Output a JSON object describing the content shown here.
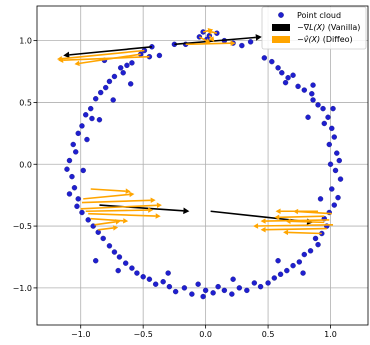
{
  "chart_data": {
    "type": "scatter",
    "title": "",
    "xlabel": "",
    "ylabel": "",
    "xlim": [
      -1.35,
      1.3
    ],
    "ylim": [
      -1.3,
      1.28
    ],
    "x_ticks": [
      -1.0,
      -0.5,
      0.0,
      0.5,
      1.0
    ],
    "y_ticks": [
      -1.0,
      -0.5,
      0.0,
      0.5,
      1.0
    ],
    "x_tick_labels": [
      "−1.0",
      "−0.5",
      "0.0",
      "0.5",
      "1.0"
    ],
    "y_tick_labels": [
      "−1.0",
      "−0.5",
      "0.0",
      "0.5",
      "1.0"
    ],
    "grid": true,
    "legend_position": "top-right",
    "legend": [
      {
        "label": "Point cloud",
        "marker": "dot",
        "color": "#1f1fcf"
      },
      {
        "label_prefix": "−∇",
        "label_math": "L(X)",
        "label_suffix": " (Vanilla)",
        "marker": "arrow",
        "color": "#000000"
      },
      {
        "label_prefix": "−",
        "label_math": "v̂(X)",
        "label_suffix": " (Diffeo)",
        "marker": "arrow",
        "color": "#ffa500"
      }
    ],
    "colors": {
      "points": "#1f1fcf",
      "points_edge": "#1a1a8c",
      "vanilla": "#000000",
      "diffeo": "#ffa500",
      "grid": "#b0b0b0"
    },
    "points": [
      [
        -0.02,
        1.07
      ],
      [
        0.03,
        1.04
      ],
      [
        -0.05,
        1.03
      ],
      [
        0.09,
        1.06
      ],
      [
        0.01,
        1.01
      ],
      [
        -0.16,
        0.97
      ],
      [
        -0.25,
        0.97
      ],
      [
        0.22,
        0.98
      ],
      [
        0.29,
        0.96
      ],
      [
        0.36,
        0.99
      ],
      [
        -0.43,
        0.95
      ],
      [
        -0.49,
        0.92
      ],
      [
        -0.52,
        0.89
      ],
      [
        -0.45,
        0.87
      ],
      [
        0.47,
        0.86
      ],
      [
        0.53,
        0.83
      ],
      [
        -0.59,
        0.82
      ],
      [
        -0.63,
        0.8
      ],
      [
        -0.68,
        0.78
      ],
      [
        -0.66,
        0.74
      ],
      [
        0.58,
        0.78
      ],
      [
        0.61,
        0.74
      ],
      [
        0.66,
        0.7
      ],
      [
        0.7,
        0.72
      ],
      [
        -0.73,
        0.71
      ],
      [
        -0.77,
        0.67
      ],
      [
        -0.8,
        0.62
      ],
      [
        0.74,
        0.63
      ],
      [
        0.79,
        0.6
      ],
      [
        0.85,
        0.57
      ],
      [
        -0.84,
        0.58
      ],
      [
        -0.88,
        0.53
      ],
      [
        0.86,
        0.52
      ],
      [
        0.9,
        0.48
      ],
      [
        0.94,
        0.45
      ],
      [
        -0.92,
        0.45
      ],
      [
        -0.96,
        0.4
      ],
      [
        -0.91,
        0.37
      ],
      [
        0.98,
        0.38
      ],
      [
        0.95,
        0.33
      ],
      [
        1.01,
        0.29
      ],
      [
        -0.99,
        0.31
      ],
      [
        -1.02,
        0.25
      ],
      [
        1.03,
        0.22
      ],
      [
        0.99,
        0.16
      ],
      [
        -1.06,
        0.16
      ],
      [
        -1.04,
        0.1
      ],
      [
        1.05,
        0.09
      ],
      [
        1.07,
        0.03
      ],
      [
        -1.09,
        0.03
      ],
      [
        -1.11,
        -0.04
      ],
      [
        -1.07,
        -0.1
      ],
      [
        1.04,
        -0.05
      ],
      [
        1.08,
        -0.12
      ],
      [
        -1.05,
        -0.19
      ],
      [
        -1.09,
        -0.24
      ],
      [
        -1.02,
        -0.28
      ],
      [
        1.01,
        -0.2
      ],
      [
        1.06,
        -0.27
      ],
      [
        -1.03,
        -0.34
      ],
      [
        -0.99,
        -0.39
      ],
      [
        -0.94,
        -0.45
      ],
      [
        1.03,
        -0.33
      ],
      [
        0.99,
        -0.39
      ],
      [
        0.95,
        -0.44
      ],
      [
        -0.9,
        -0.5
      ],
      [
        -0.86,
        -0.55
      ],
      [
        0.97,
        -0.5
      ],
      [
        0.93,
        -0.56
      ],
      [
        0.88,
        -0.6
      ],
      [
        -0.82,
        -0.6
      ],
      [
        -0.77,
        -0.66
      ],
      [
        0.9,
        -0.65
      ],
      [
        0.84,
        -0.7
      ],
      [
        0.79,
        -0.73
      ],
      [
        -0.73,
        -0.71
      ],
      [
        -0.69,
        -0.75
      ],
      [
        -0.64,
        -0.8
      ],
      [
        0.75,
        -0.79
      ],
      [
        0.7,
        -0.82
      ],
      [
        0.65,
        -0.86
      ],
      [
        -0.59,
        -0.84
      ],
      [
        -0.55,
        -0.88
      ],
      [
        -0.5,
        -0.91
      ],
      [
        0.6,
        -0.89
      ],
      [
        0.55,
        -0.92
      ],
      [
        0.5,
        -0.96
      ],
      [
        -0.45,
        -0.93
      ],
      [
        -0.4,
        -0.97
      ],
      [
        -0.34,
        -0.95
      ],
      [
        0.44,
        -0.99
      ],
      [
        0.39,
        -0.96
      ],
      [
        0.33,
        -1.02
      ],
      [
        -0.29,
        -0.99
      ],
      [
        -0.24,
        -1.03
      ],
      [
        -0.17,
        -1.0
      ],
      [
        0.27,
        -1.0
      ],
      [
        0.21,
        -1.05
      ],
      [
        0.15,
        -1.02
      ],
      [
        -0.11,
        -1.05
      ],
      [
        -0.06,
        -0.97
      ],
      [
        0.0,
        -1.02
      ],
      [
        0.06,
        -1.04
      ],
      [
        0.1,
        -0.99
      ],
      [
        -0.02,
        -1.07
      ],
      [
        -0.37,
        0.88
      ],
      [
        0.64,
        0.66
      ],
      [
        -0.74,
        0.52
      ],
      [
        -0.85,
        0.36
      ],
      [
        1.02,
        0.45
      ],
      [
        -0.98,
        -0.05
      ],
      [
        1.0,
        0.0
      ],
      [
        -0.7,
        -0.86
      ],
      [
        0.78,
        -0.88
      ],
      [
        0.82,
        0.38
      ],
      [
        -0.6,
        0.65
      ],
      [
        0.15,
        1.0
      ],
      [
        -0.95,
        0.2
      ],
      [
        0.92,
        -0.28
      ],
      [
        -0.88,
        -0.78
      ],
      [
        0.58,
        -0.78
      ],
      [
        -0.3,
        -0.88
      ],
      [
        0.22,
        -0.93
      ],
      [
        -0.81,
        0.84
      ],
      [
        0.86,
        0.64
      ]
    ],
    "vanilla_arrows": [
      [
        -0.43,
        0.95,
        -1.14,
        0.88
      ],
      [
        -0.25,
        0.97,
        0.45,
        1.03
      ],
      [
        -0.85,
        -0.33,
        -0.13,
        -0.38
      ],
      [
        0.04,
        -0.38,
        0.86,
        -0.47
      ]
    ],
    "diffeo_arrows": [
      [
        -0.49,
        0.92,
        -1.19,
        0.85
      ],
      [
        -0.45,
        0.87,
        -1.18,
        0.84
      ],
      [
        -0.52,
        0.89,
        -1.05,
        0.81
      ],
      [
        -0.16,
        0.97,
        0.24,
        0.98
      ],
      [
        -0.02,
        1.07,
        0.06,
        1.09
      ],
      [
        0.09,
        1.06,
        0.01,
        1.08
      ],
      [
        0.03,
        1.04,
        0.07,
        0.99
      ],
      [
        -0.05,
        1.03,
        0.04,
        0.98
      ],
      [
        -0.92,
        -0.2,
        -0.6,
        -0.22
      ],
      [
        -0.99,
        -0.31,
        -0.4,
        -0.29
      ],
      [
        -1.0,
        -0.36,
        -0.35,
        -0.33
      ],
      [
        -0.96,
        -0.38,
        -0.42,
        -0.37
      ],
      [
        -0.94,
        -0.4,
        -0.36,
        -0.42
      ],
      [
        -0.92,
        -0.44,
        -0.62,
        -0.46
      ],
      [
        -0.89,
        -0.49,
        -0.68,
        -0.46
      ],
      [
        -0.86,
        -0.53,
        -0.7,
        -0.51
      ],
      [
        -0.98,
        -0.28,
        -0.57,
        -0.24
      ],
      [
        0.9,
        -0.38,
        0.56,
        -0.38
      ],
      [
        0.95,
        -0.42,
        0.55,
        -0.43
      ],
      [
        0.99,
        -0.45,
        0.44,
        -0.46
      ],
      [
        1.02,
        -0.49,
        0.38,
        -0.5
      ],
      [
        0.97,
        -0.52,
        0.44,
        -0.53
      ],
      [
        0.93,
        -0.56,
        0.62,
        -0.55
      ],
      [
        0.95,
        -0.47,
        0.64,
        -0.46
      ],
      [
        1.01,
        -0.4,
        0.7,
        -0.38
      ]
    ]
  }
}
